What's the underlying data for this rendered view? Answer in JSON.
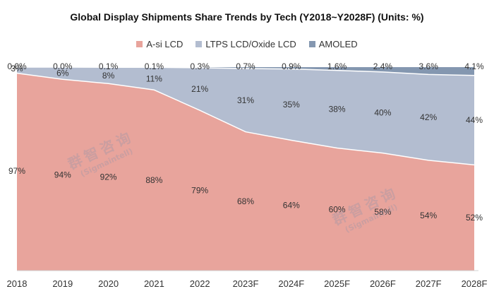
{
  "chart_data": {
    "type": "area",
    "stacked": true,
    "percent": true,
    "title": "Global Display Shipments Share Trends by Tech (Y2018~Y2028F) (Units: %)",
    "categories": [
      "2018",
      "2019",
      "2020",
      "2021",
      "2022",
      "2023F",
      "2024F",
      "2025F",
      "2026F",
      "2027F",
      "2028F"
    ],
    "ylim": [
      0,
      100
    ],
    "grid": false,
    "legend_position": "top",
    "series": [
      {
        "name": "A-si LCD",
        "color": "#e8a49c",
        "values": [
          97,
          94,
          92,
          88,
          79,
          68,
          64,
          60,
          58,
          54,
          52
        ],
        "labels": [
          "97%",
          "94%",
          "92%",
          "88%",
          "79%",
          "68%",
          "64%",
          "60%",
          "58%",
          "54%",
          "52%"
        ]
      },
      {
        "name": "LTPS LCD/Oxide LCD",
        "color": "#b3bdd0",
        "values": [
          3,
          6,
          8,
          11,
          21,
          31,
          35,
          38,
          40,
          42,
          44
        ],
        "labels": [
          "3%",
          "6%",
          "8%",
          "11%",
          "21%",
          "31%",
          "35%",
          "38%",
          "40%",
          "42%",
          "44%"
        ]
      },
      {
        "name": "AMOLED",
        "color": "#8497b0",
        "values": [
          0.0,
          0.0,
          0.1,
          0.1,
          0.3,
          0.7,
          0.9,
          1.6,
          2.4,
          3.6,
          4.1
        ],
        "labels": [
          "0.0%",
          "0.0%",
          "0.1%",
          "0.1%",
          "0.3%",
          "0.7%",
          "0.9%",
          "1.6%",
          "2.4%",
          "3.6%",
          "4.1%"
        ]
      }
    ]
  },
  "watermark": {
    "cn": "群智咨询",
    "en": "(Sigmaintell)"
  }
}
